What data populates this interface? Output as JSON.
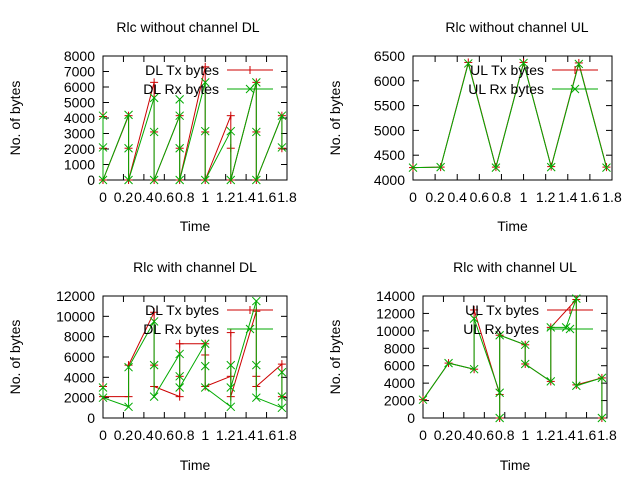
{
  "chart_data": [
    {
      "type": "line",
      "title": "Rlc without channel DL",
      "xlabel": "Time",
      "ylabel": "No. of bytes",
      "xlim": [
        0,
        1.8
      ],
      "ylim": [
        0,
        8000
      ],
      "xticks": [
        "0",
        "0.2",
        "0.4",
        "0.6",
        "0.8",
        "1",
        "1.2",
        "1.4",
        "1.6",
        "1.8"
      ],
      "yticks": [
        0,
        1000,
        2000,
        3000,
        4000,
        5000,
        6000,
        7000,
        8000
      ],
      "legend_position": "top-right",
      "grid": false,
      "series": [
        {
          "name": "DL Tx bytes",
          "color": "#cc0000",
          "marker": "plus",
          "points": [
            [
              0,
              4100
            ],
            [
              0,
              2050
            ],
            [
              0,
              0
            ],
            [
              0.25,
              4150
            ],
            [
              0.25,
              2050
            ],
            [
              0.25,
              0
            ],
            [
              0.5,
              6300
            ],
            [
              0.5,
              3100
            ],
            [
              0.5,
              0
            ],
            [
              0.75,
              4150
            ],
            [
              0.75,
              2050
            ],
            [
              0.75,
              0
            ],
            [
              1.0,
              7300
            ],
            [
              1.0,
              3100
            ],
            [
              1.0,
              0
            ],
            [
              1.25,
              4150
            ],
            [
              1.25,
              2050
            ],
            [
              1.25,
              0
            ],
            [
              1.5,
              6300
            ],
            [
              1.5,
              3100
            ],
            [
              1.5,
              0
            ],
            [
              1.75,
              4150
            ],
            [
              1.75,
              2050
            ]
          ]
        },
        {
          "name": "DL Rx bytes",
          "color": "#00aa00",
          "marker": "cross",
          "points": [
            [
              0,
              4150
            ],
            [
              0,
              2100
            ],
            [
              0,
              0
            ],
            [
              0.25,
              4200
            ],
            [
              0.25,
              2050
            ],
            [
              0.25,
              0
            ],
            [
              0.5,
              5300
            ],
            [
              0.5,
              3100
            ],
            [
              0.5,
              0
            ],
            [
              0.75,
              4150
            ],
            [
              0.75,
              5200
            ],
            [
              0.75,
              2050
            ],
            [
              0.75,
              0
            ],
            [
              1.0,
              6300
            ],
            [
              1.0,
              3150
            ],
            [
              1.0,
              0
            ],
            [
              1.25,
              3150
            ],
            [
              1.25,
              0
            ],
            [
              1.5,
              6300
            ],
            [
              1.5,
              3100
            ],
            [
              1.5,
              0
            ],
            [
              1.75,
              4150
            ],
            [
              1.75,
              2100
            ]
          ]
        }
      ]
    },
    {
      "type": "line",
      "title": "Rlc without channel UL",
      "xlabel": "Time",
      "ylabel": "No. of bytes",
      "xlim": [
        0,
        1.8
      ],
      "ylim": [
        4000,
        6500
      ],
      "xticks": [
        "0",
        "0.2",
        "0.4",
        "0.6",
        "0.8",
        "1",
        "1.2",
        "1.4",
        "1.6",
        "1.8"
      ],
      "yticks": [
        4000,
        4500,
        5000,
        5500,
        6000,
        6500
      ],
      "legend_position": "top-right",
      "grid": false,
      "series": [
        {
          "name": "UL Tx bytes",
          "color": "#cc0000",
          "marker": "plus",
          "points": [
            [
              0,
              4250
            ],
            [
              0.25,
              4260
            ],
            [
              0.5,
              6370
            ],
            [
              0.75,
              4260
            ],
            [
              1.0,
              6370
            ],
            [
              1.25,
              4270
            ],
            [
              1.5,
              6360
            ],
            [
              1.75,
              4260
            ]
          ]
        },
        {
          "name": "UL Rx bytes",
          "color": "#00aa00",
          "marker": "cross",
          "points": [
            [
              0,
              4250
            ],
            [
              0.25,
              4260
            ],
            [
              0.5,
              6350
            ],
            [
              0.75,
              4250
            ],
            [
              1.0,
              6360
            ],
            [
              1.25,
              4260
            ],
            [
              1.5,
              6340
            ],
            [
              1.75,
              4250
            ]
          ]
        }
      ]
    },
    {
      "type": "line",
      "title": "Rlc with channel DL",
      "xlabel": "Time",
      "ylabel": "No. of bytes",
      "xlim": [
        0,
        1.8
      ],
      "ylim": [
        0,
        12000
      ],
      "xticks": [
        "0",
        "0.2",
        "0.4",
        "0.6",
        "0.8",
        "1",
        "1.2",
        "1.4",
        "1.6",
        "1.8"
      ],
      "yticks": [
        0,
        2000,
        4000,
        6000,
        8000,
        10000,
        12000
      ],
      "legend_position": "top-right",
      "grid": false,
      "series": [
        {
          "name": "DL Tx bytes",
          "color": "#cc0000",
          "marker": "plus",
          "points": [
            [
              0,
              3100
            ],
            [
              0,
              2100
            ],
            [
              0.25,
              2100
            ],
            [
              0.25,
              5200
            ],
            [
              0.5,
              10400
            ],
            [
              0.5,
              5200
            ],
            [
              0.5,
              3100
            ],
            [
              0.75,
              2100
            ],
            [
              0.75,
              4100
            ],
            [
              0.75,
              7300
            ],
            [
              1.0,
              7300
            ],
            [
              1.0,
              6200
            ],
            [
              1.0,
              3100
            ],
            [
              1.25,
              4100
            ],
            [
              1.25,
              8400
            ],
            [
              1.25,
              2100
            ],
            [
              1.5,
              10500
            ],
            [
              1.5,
              4100
            ],
            [
              1.5,
              3100
            ],
            [
              1.75,
              5300
            ],
            [
              1.75,
              2100
            ]
          ]
        },
        {
          "name": "DL Rx bytes",
          "color": "#00aa00",
          "marker": "cross",
          "points": [
            [
              0,
              3000
            ],
            [
              0,
              2000
            ],
            [
              0.25,
              1100
            ],
            [
              0.25,
              5000
            ],
            [
              0.5,
              9500
            ],
            [
              0.5,
              5200
            ],
            [
              0.5,
              2100
            ],
            [
              0.75,
              6300
            ],
            [
              0.75,
              4100
            ],
            [
              0.75,
              3000
            ],
            [
              1.0,
              7300
            ],
            [
              1.0,
              5100
            ],
            [
              1.0,
              3000
            ],
            [
              1.25,
              1100
            ],
            [
              1.25,
              5200
            ],
            [
              1.25,
              3000
            ],
            [
              1.5,
              11500
            ],
            [
              1.5,
              5200
            ],
            [
              1.5,
              2000
            ],
            [
              1.75,
              1000
            ],
            [
              1.75,
              4500
            ],
            [
              1.75,
              2100
            ]
          ]
        }
      ]
    },
    {
      "type": "line",
      "title": "Rlc with channel UL",
      "xlabel": "Time",
      "ylabel": "No. of bytes",
      "xlim": [
        0,
        1.8
      ],
      "ylim": [
        0,
        14000
      ],
      "xticks": [
        "0",
        "0.2",
        "0.4",
        "0.6",
        "0.8",
        "1",
        "1.2",
        "1.4",
        "1.6",
        "1.8"
      ],
      "yticks": [
        0,
        2000,
        4000,
        6000,
        8000,
        10000,
        12000,
        14000
      ],
      "legend_position": "top-right",
      "grid": false,
      "series": [
        {
          "name": "UL Tx bytes",
          "color": "#cc0000",
          "marker": "plus",
          "points": [
            [
              0,
              2100
            ],
            [
              0.25,
              6300
            ],
            [
              0.5,
              5600
            ],
            [
              0.5,
              12400
            ],
            [
              0.75,
              2700
            ],
            [
              0.75,
              0
            ],
            [
              0.75,
              9500
            ],
            [
              1.0,
              8400
            ],
            [
              1.0,
              6200
            ],
            [
              1.25,
              4200
            ],
            [
              1.25,
              10400
            ],
            [
              1.5,
              13600
            ],
            [
              1.5,
              3800
            ],
            [
              1.75,
              4600
            ],
            [
              1.75,
              0
            ]
          ]
        },
        {
          "name": "UL Rx bytes",
          "color": "#00aa00",
          "marker": "cross",
          "points": [
            [
              0,
              2100
            ],
            [
              0.25,
              6300
            ],
            [
              0.5,
              5600
            ],
            [
              0.5,
              11400
            ],
            [
              0.75,
              2900
            ],
            [
              0.75,
              0
            ],
            [
              0.75,
              9500
            ],
            [
              1.0,
              8400
            ],
            [
              1.0,
              6200
            ],
            [
              1.25,
              4200
            ],
            [
              1.25,
              10400
            ],
            [
              1.4,
              10400
            ],
            [
              1.5,
              13700
            ],
            [
              1.5,
              3700
            ],
            [
              1.75,
              4600
            ],
            [
              1.75,
              0
            ]
          ]
        }
      ]
    }
  ]
}
